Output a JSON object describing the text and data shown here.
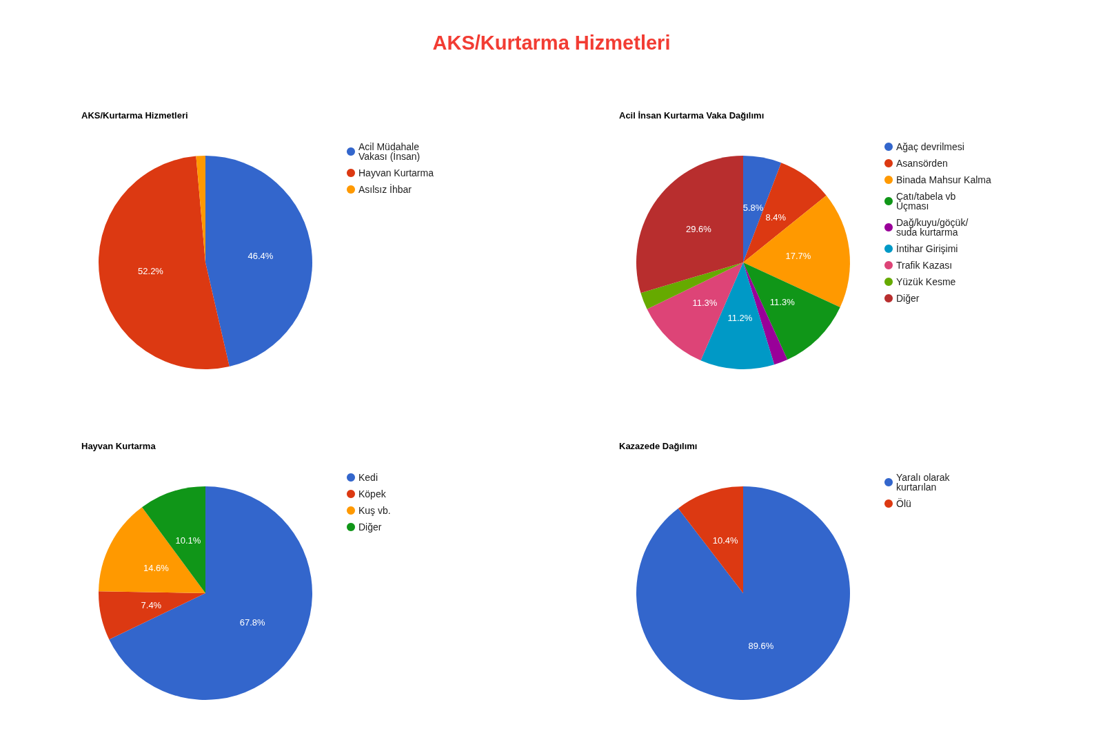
{
  "chart_data": [
    {
      "type": "other",
      "title": "AKS/Kurtarma Hizmetleri"
    },
    {
      "type": "pie",
      "title": "AKS/Kurtarma Hizmetleri",
      "legend": "right",
      "categories": [
        "Acil Müdahale Vakası (İnsan)",
        "Hayvan Kurtarma",
        "Asılsız İhbar"
      ],
      "values": [
        46.4,
        52.2,
        1.4
      ],
      "value_labels": [
        "46.4%",
        "52.2%",
        null
      ],
      "colors": [
        "#3366cc",
        "#dc3912",
        "#ff9900"
      ]
    },
    {
      "type": "pie",
      "title": "Acil İnsan Kurtarma Vaka Dağılımı",
      "legend": "right",
      "categories": [
        "Ağaç devrilmesi",
        "Asansörden",
        "Binada Mahsur Kalma",
        "Çatı/tabela vb Uçması",
        "Dağ/kuyu/göçük/suda kurtarma",
        "İntihar Girişimi",
        "Trafik Kazası",
        "Yüzük Kesme",
        "Diğer"
      ],
      "values": [
        5.8,
        8.4,
        17.7,
        11.3,
        2.1,
        11.2,
        11.3,
        2.6,
        29.6
      ],
      "value_labels": [
        "5.8%",
        "8.4%",
        "17.7%",
        "11.3%",
        null,
        "11.2%",
        "11.3%",
        null,
        "29.6%"
      ],
      "colors": [
        "#3366cc",
        "#dc3912",
        "#ff9900",
        "#109618",
        "#990099",
        "#0099c6",
        "#dd4477",
        "#66aa00",
        "#b82e2e"
      ]
    },
    {
      "type": "pie",
      "title": "Hayvan Kurtarma",
      "legend": "right",
      "categories": [
        "Kedi",
        "Köpek",
        "Kuş vb.",
        "Diğer"
      ],
      "values": [
        67.8,
        7.4,
        14.6,
        10.1
      ],
      "value_labels": [
        "67.8%",
        "7.4%",
        "14.6%",
        "10.1%"
      ],
      "colors": [
        "#3366cc",
        "#dc3912",
        "#ff9900",
        "#109618"
      ]
    },
    {
      "type": "pie",
      "title": "Kazazede Dağılımı",
      "legend": "right",
      "categories": [
        "Yaralı olarak kurtarılan",
        "Ölü"
      ],
      "values": [
        89.6,
        10.4
      ],
      "value_labels": [
        "89.6%",
        "10.4%"
      ],
      "colors": [
        "#3366cc",
        "#dc3912"
      ]
    }
  ]
}
